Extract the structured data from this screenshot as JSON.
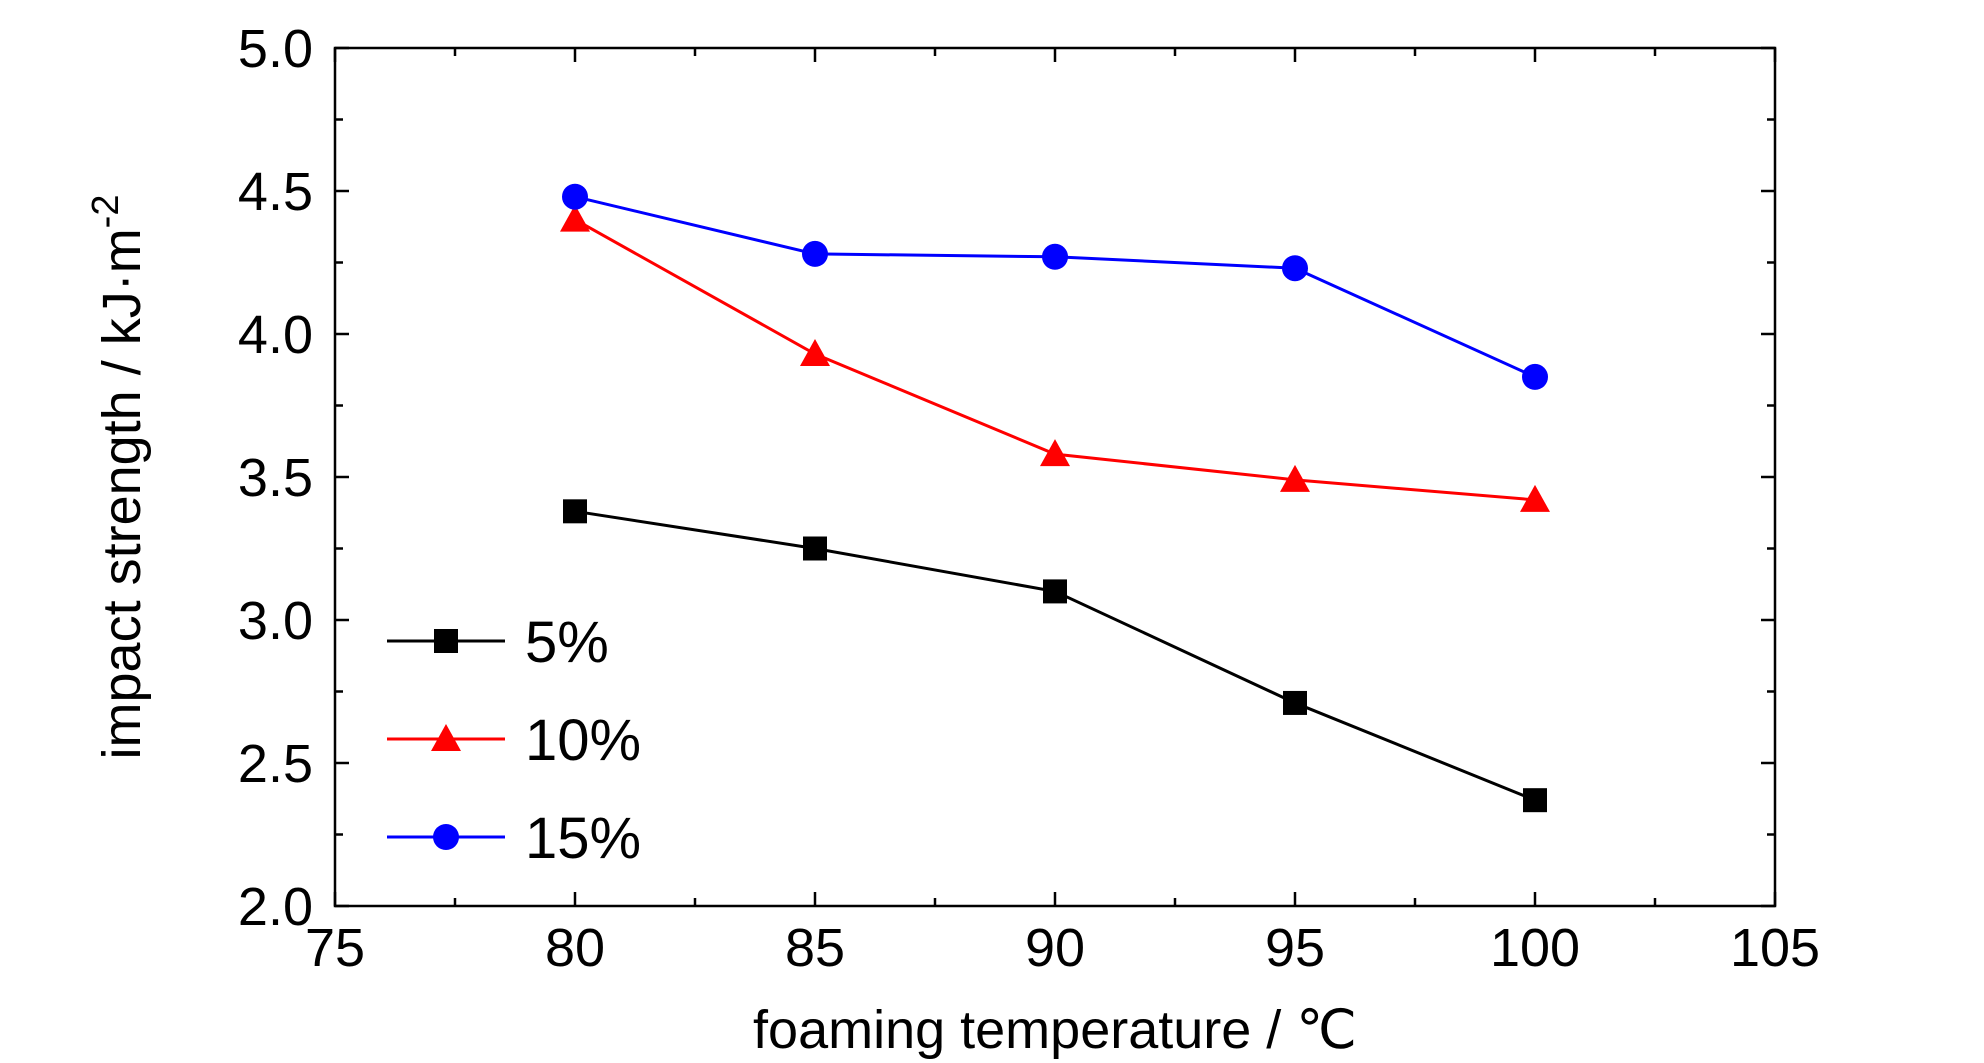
{
  "chart_data": {
    "type": "line",
    "xlabel": "foaming temperature / ℃",
    "ylabel_main": "impact strength / kJ·m",
    "ylabel_sup": "-2",
    "xlim": [
      75,
      105
    ],
    "ylim": [
      2.0,
      5.0
    ],
    "x_ticks": [
      75,
      80,
      85,
      90,
      95,
      100,
      105
    ],
    "x_tick_labels": [
      "75",
      "80",
      "85",
      "90",
      "95",
      "100",
      "105"
    ],
    "y_ticks": [
      2.0,
      2.5,
      3.0,
      3.5,
      4.0,
      4.5,
      5.0
    ],
    "y_tick_labels": [
      "2.0",
      "2.5",
      "3.0",
      "3.5",
      "4.0",
      "4.5",
      "5.0"
    ],
    "grid": false,
    "legend_position": "bottom-left",
    "x": [
      80,
      85,
      90,
      95,
      100
    ],
    "series": [
      {
        "name": "5%",
        "values": [
          3.38,
          3.25,
          3.1,
          2.71,
          2.37
        ],
        "color": "#000000",
        "marker": "square"
      },
      {
        "name": "10%",
        "values": [
          4.4,
          3.93,
          3.58,
          3.49,
          3.42
        ],
        "color": "#ff0000",
        "marker": "triangle"
      },
      {
        "name": "15%",
        "values": [
          4.48,
          4.28,
          4.27,
          4.23,
          3.85
        ],
        "color": "#0000ff",
        "marker": "circle"
      }
    ]
  }
}
